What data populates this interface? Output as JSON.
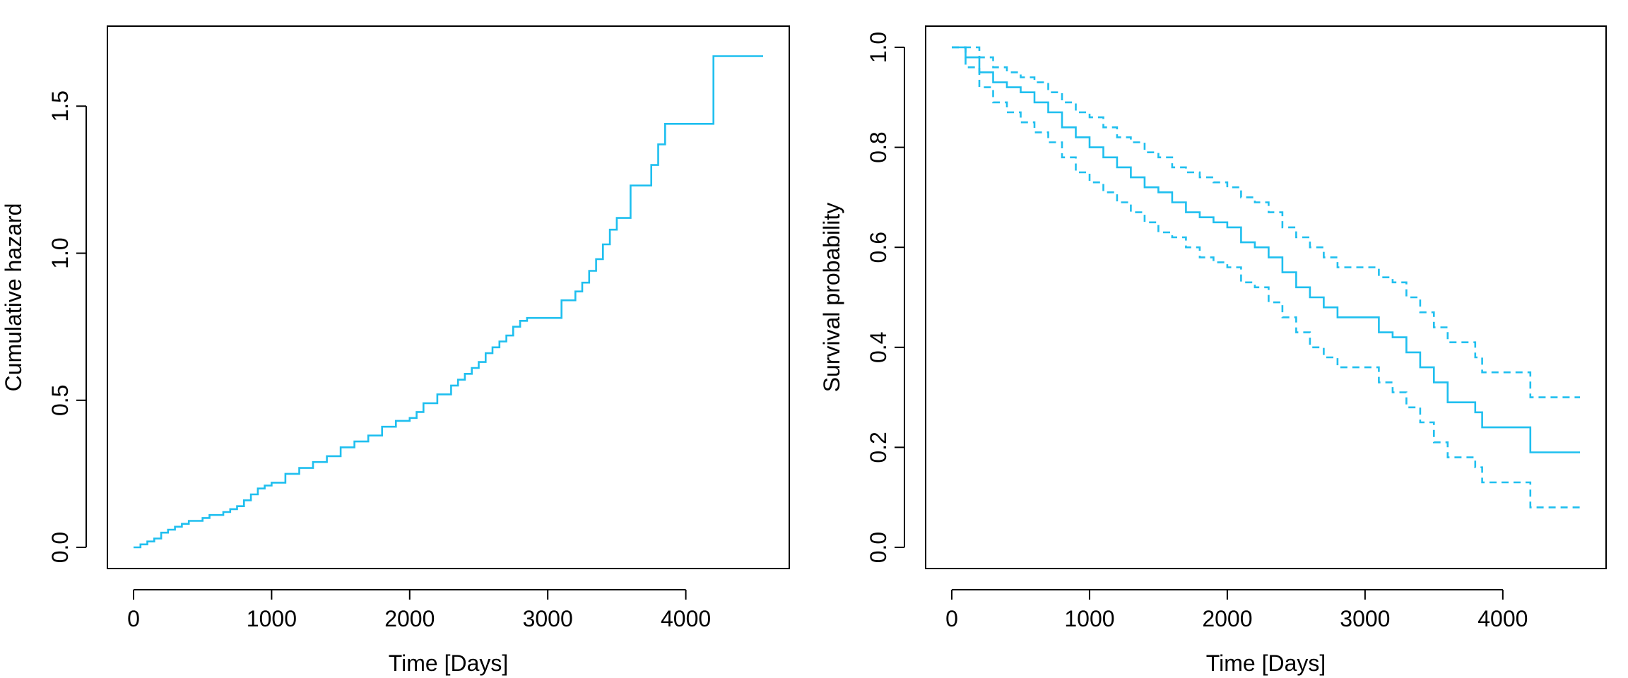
{
  "colors": {
    "series": "#1fbfef",
    "axis": "#000000",
    "background": "#ffffff"
  },
  "chart_data": [
    {
      "type": "line",
      "step": true,
      "xlabel": "Time [Days]",
      "ylabel": "Cumulative hazard",
      "xlim": [
        0,
        4560
      ],
      "ylim": [
        0,
        1.7
      ],
      "xticks": [
        0,
        1000,
        2000,
        3000,
        4000
      ],
      "yticks": [
        0.0,
        0.5,
        1.0,
        1.5
      ],
      "xtick_labels": [
        "0",
        "1000",
        "2000",
        "3000",
        "4000"
      ],
      "ytick_labels": [
        "0.0",
        "0.5",
        "1.0",
        "1.5"
      ],
      "grid": false,
      "series": [
        {
          "style": "solid",
          "x": [
            0,
            50,
            100,
            150,
            200,
            250,
            300,
            350,
            400,
            450,
            500,
            550,
            600,
            650,
            700,
            750,
            800,
            850,
            900,
            950,
            1000,
            1100,
            1200,
            1300,
            1400,
            1500,
            1600,
            1700,
            1800,
            1900,
            2000,
            2050,
            2100,
            2200,
            2300,
            2350,
            2400,
            2450,
            2500,
            2550,
            2600,
            2650,
            2700,
            2750,
            2800,
            2850,
            3000,
            3100,
            3200,
            3250,
            3300,
            3350,
            3400,
            3450,
            3500,
            3600,
            3700,
            3750,
            3800,
            3850,
            4100,
            4200,
            4560
          ],
          "y": [
            0.0,
            0.01,
            0.02,
            0.03,
            0.05,
            0.06,
            0.07,
            0.08,
            0.09,
            0.09,
            0.1,
            0.11,
            0.11,
            0.12,
            0.13,
            0.14,
            0.16,
            0.18,
            0.2,
            0.21,
            0.22,
            0.25,
            0.27,
            0.29,
            0.31,
            0.34,
            0.36,
            0.38,
            0.41,
            0.43,
            0.44,
            0.46,
            0.49,
            0.52,
            0.55,
            0.57,
            0.59,
            0.61,
            0.63,
            0.66,
            0.68,
            0.7,
            0.72,
            0.75,
            0.77,
            0.78,
            0.78,
            0.84,
            0.87,
            0.9,
            0.94,
            0.98,
            1.03,
            1.08,
            1.12,
            1.23,
            1.23,
            1.3,
            1.37,
            1.44,
            1.44,
            1.67,
            1.67
          ]
        }
      ]
    },
    {
      "type": "line",
      "step": true,
      "xlabel": "Time [Days]",
      "ylabel": "Survival probability",
      "xlim": [
        0,
        4560
      ],
      "ylim": [
        0,
        1.0
      ],
      "xticks": [
        0,
        1000,
        2000,
        3000,
        4000
      ],
      "yticks": [
        0.0,
        0.2,
        0.4,
        0.6,
        0.8,
        1.0
      ],
      "xtick_labels": [
        "0",
        "1000",
        "2000",
        "3000",
        "4000"
      ],
      "ytick_labels": [
        "0.0",
        "0.2",
        "0.4",
        "0.6",
        "0.8",
        "1.0"
      ],
      "grid": false,
      "series": [
        {
          "style": "solid",
          "x": [
            0,
            100,
            200,
            300,
            400,
            500,
            600,
            700,
            800,
            900,
            1000,
            1100,
            1200,
            1300,
            1400,
            1500,
            1600,
            1700,
            1800,
            1900,
            2000,
            2100,
            2200,
            2300,
            2400,
            2500,
            2600,
            2700,
            2800,
            3000,
            3100,
            3200,
            3300,
            3400,
            3500,
            3600,
            3700,
            3800,
            3850,
            4100,
            4200,
            4560
          ],
          "y": [
            1.0,
            0.98,
            0.95,
            0.93,
            0.92,
            0.91,
            0.89,
            0.87,
            0.84,
            0.82,
            0.8,
            0.78,
            0.76,
            0.74,
            0.72,
            0.71,
            0.69,
            0.67,
            0.66,
            0.65,
            0.64,
            0.61,
            0.6,
            0.58,
            0.55,
            0.52,
            0.5,
            0.48,
            0.46,
            0.46,
            0.43,
            0.42,
            0.39,
            0.36,
            0.33,
            0.29,
            0.29,
            0.27,
            0.24,
            0.24,
            0.19,
            0.19
          ]
        },
        {
          "style": "dashed",
          "x": [
            0,
            100,
            200,
            300,
            400,
            500,
            600,
            700,
            800,
            900,
            1000,
            1100,
            1200,
            1300,
            1400,
            1500,
            1600,
            1700,
            1800,
            1900,
            2000,
            2100,
            2200,
            2300,
            2400,
            2500,
            2600,
            2700,
            2800,
            3000,
            3100,
            3200,
            3300,
            3400,
            3500,
            3600,
            3700,
            3800,
            3850,
            4100,
            4200,
            4560
          ],
          "y": [
            1.0,
            1.0,
            0.98,
            0.96,
            0.95,
            0.94,
            0.93,
            0.91,
            0.89,
            0.87,
            0.86,
            0.84,
            0.82,
            0.81,
            0.79,
            0.78,
            0.76,
            0.75,
            0.74,
            0.73,
            0.72,
            0.7,
            0.69,
            0.67,
            0.64,
            0.62,
            0.6,
            0.58,
            0.56,
            0.56,
            0.54,
            0.53,
            0.5,
            0.47,
            0.44,
            0.41,
            0.41,
            0.38,
            0.35,
            0.35,
            0.3,
            0.3
          ]
        },
        {
          "style": "dashed",
          "x": [
            0,
            100,
            200,
            300,
            400,
            500,
            600,
            700,
            800,
            900,
            1000,
            1100,
            1200,
            1300,
            1400,
            1500,
            1600,
            1700,
            1800,
            1900,
            2000,
            2100,
            2200,
            2300,
            2400,
            2500,
            2600,
            2700,
            2800,
            3000,
            3100,
            3200,
            3300,
            3400,
            3500,
            3600,
            3700,
            3800,
            3850,
            4100,
            4200,
            4560
          ],
          "y": [
            1.0,
            0.96,
            0.92,
            0.89,
            0.87,
            0.85,
            0.83,
            0.81,
            0.78,
            0.75,
            0.73,
            0.71,
            0.69,
            0.67,
            0.65,
            0.63,
            0.62,
            0.6,
            0.58,
            0.57,
            0.56,
            0.53,
            0.52,
            0.49,
            0.46,
            0.43,
            0.4,
            0.38,
            0.36,
            0.36,
            0.33,
            0.31,
            0.28,
            0.25,
            0.21,
            0.18,
            0.18,
            0.16,
            0.13,
            0.13,
            0.08,
            0.08
          ]
        }
      ]
    }
  ]
}
